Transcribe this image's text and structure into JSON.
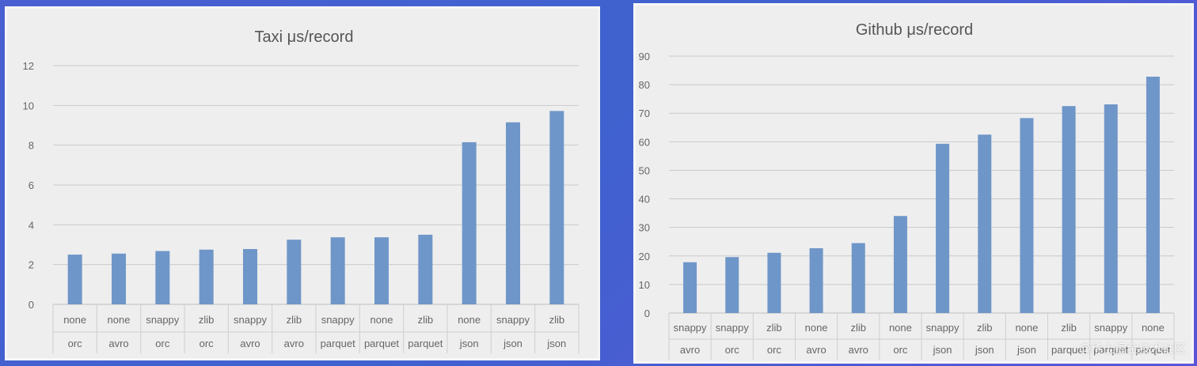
{
  "chart_data": [
    {
      "type": "bar",
      "title": "Taxi μs/record",
      "ylim": [
        0,
        12
      ],
      "yticks": [
        0,
        2,
        4,
        6,
        8,
        10,
        12
      ],
      "categories": [
        {
          "codec": "none",
          "format": "orc"
        },
        {
          "codec": "none",
          "format": "avro"
        },
        {
          "codec": "snappy",
          "format": "orc"
        },
        {
          "codec": "zlib",
          "format": "orc"
        },
        {
          "codec": "snappy",
          "format": "avro"
        },
        {
          "codec": "zlib",
          "format": "avro"
        },
        {
          "codec": "snappy",
          "format": "parquet"
        },
        {
          "codec": "none",
          "format": "parquet"
        },
        {
          "codec": "zlib",
          "format": "parquet"
        },
        {
          "codec": "none",
          "format": "json"
        },
        {
          "codec": "snappy",
          "format": "json"
        },
        {
          "codec": "zlib",
          "format": "json"
        }
      ],
      "values": [
        2.5,
        2.55,
        2.68,
        2.75,
        2.78,
        3.25,
        3.37,
        3.37,
        3.5,
        8.15,
        9.15,
        9.72
      ],
      "grid": true,
      "bar_color": "#6f96c8"
    },
    {
      "type": "bar",
      "title": "Github μs/record",
      "ylim": [
        0,
        90
      ],
      "yticks": [
        0,
        10,
        20,
        30,
        40,
        50,
        60,
        70,
        80,
        90
      ],
      "categories": [
        {
          "codec": "snappy",
          "format": "avro"
        },
        {
          "codec": "snappy",
          "format": "orc"
        },
        {
          "codec": "zlib",
          "format": "orc"
        },
        {
          "codec": "none",
          "format": "avro"
        },
        {
          "codec": "zlib",
          "format": "avro"
        },
        {
          "codec": "none",
          "format": "orc"
        },
        {
          "codec": "snappy",
          "format": "json"
        },
        {
          "codec": "zlib",
          "format": "json"
        },
        {
          "codec": "none",
          "format": "json"
        },
        {
          "codec": "zlib",
          "format": "parquet"
        },
        {
          "codec": "snappy",
          "format": "parquet"
        },
        {
          "codec": "none",
          "format": "parquet"
        }
      ],
      "values": [
        17.8,
        19.6,
        21.1,
        22.7,
        24.5,
        34.0,
        59.3,
        62.5,
        68.3,
        72.5,
        73.1,
        82.8
      ],
      "grid": true,
      "bar_color": "#6f96c8"
    }
  ],
  "watermark": "@稀土掘金技术社区"
}
